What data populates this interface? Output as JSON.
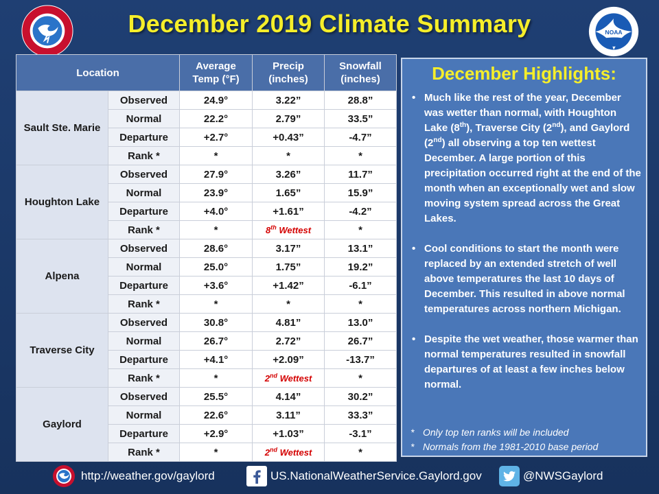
{
  "title": "December 2019 Climate Summary",
  "table": {
    "headers": {
      "location": "Location",
      "temp": [
        "Average",
        "Temp (°F)"
      ],
      "precip": [
        "Precip",
        "(inches)"
      ],
      "snow": [
        "Snowfall",
        "(inches)"
      ]
    },
    "locations": [
      {
        "name": "Sault Ste. Marie",
        "rows": [
          {
            "label": "Observed",
            "temp": "24.9°",
            "precip": "3.22”",
            "snow": "28.8”"
          },
          {
            "label": "Normal",
            "temp": "22.2°",
            "precip": "2.79”",
            "snow": "33.5”"
          },
          {
            "label": "Departure",
            "temp": "+2.7°",
            "precip": "+0.43”",
            "snow": "-4.7”"
          },
          {
            "label": "Rank *",
            "temp": "*",
            "precip": "*",
            "snow": "*"
          }
        ]
      },
      {
        "name": "Houghton Lake",
        "rows": [
          {
            "label": "Observed",
            "temp": "27.9°",
            "precip": "3.26”",
            "snow": "11.7”"
          },
          {
            "label": "Normal",
            "temp": "23.9°",
            "precip": "1.65”",
            "snow": "15.9”"
          },
          {
            "label": "Departure",
            "temp": "+4.0°",
            "precip": "+1.61”",
            "snow": "-4.2”"
          },
          {
            "label": "Rank *",
            "temp": "*",
            "precip_rank": "8",
            "precip_sup": "th",
            "precip_suffix": " Wettest",
            "snow": "*"
          }
        ]
      },
      {
        "name": "Alpena",
        "rows": [
          {
            "label": "Observed",
            "temp": "28.6°",
            "precip": "3.17”",
            "snow": "13.1”"
          },
          {
            "label": "Normal",
            "temp": "25.0°",
            "precip": "1.75”",
            "snow": "19.2”"
          },
          {
            "label": "Departure",
            "temp": "+3.6°",
            "precip": "+1.42”",
            "snow": "-6.1”"
          },
          {
            "label": "Rank *",
            "temp": "*",
            "precip": "*",
            "snow": "*"
          }
        ]
      },
      {
        "name": "Traverse City",
        "rows": [
          {
            "label": "Observed",
            "temp": "30.8°",
            "precip": "4.81”",
            "snow": "13.0”"
          },
          {
            "label": "Normal",
            "temp": "26.7°",
            "precip": "2.72”",
            "snow": "26.7”"
          },
          {
            "label": "Departure",
            "temp": "+4.1°",
            "precip": "+2.09”",
            "snow": "-13.7”"
          },
          {
            "label": "Rank *",
            "temp": "*",
            "precip_rank": "2",
            "precip_sup": "nd",
            "precip_suffix": " Wettest",
            "snow": "*"
          }
        ]
      },
      {
        "name": "Gaylord",
        "rows": [
          {
            "label": "Observed",
            "temp": "25.5°",
            "precip": "4.14”",
            "snow": "30.2”"
          },
          {
            "label": "Normal",
            "temp": "22.6°",
            "precip": "3.11”",
            "snow": "33.3”"
          },
          {
            "label": "Departure",
            "temp": "+2.9°",
            "precip": "+1.03”",
            "snow": "-3.1”"
          },
          {
            "label": "Rank *",
            "temp": "*",
            "precip_rank": "2",
            "precip_sup": "nd",
            "precip_suffix": " Wettest",
            "snow": "*"
          }
        ]
      }
    ]
  },
  "highlights": {
    "title": "December Highlights:",
    "bullet1": {
      "a": "Much like the rest of the year, December was wetter than normal, with Houghton Lake (8",
      "a_sup": "th",
      "b": "), Traverse City (2",
      "b_sup": "nd",
      "c": "), and Gaylord (2",
      "c_sup": "nd",
      "d": ") all observing a top ten wettest December. A large portion of this precipitation occurred right at the end of the month when an exceptionally wet and slow moving system spread across the Great Lakes."
    },
    "bullet2": "Cool conditions to start the month were replaced by an extended stretch of well above temperatures the last 10 days of December. This resulted in above normal temperatures across northern Michigan.",
    "bullet3": "Despite the wet weather, those warmer than normal temperatures resulted in snowfall departures of at least a few inches below normal.",
    "notes": [
      "Only top ten ranks will be included",
      "Normals from the 1981-2010 base period"
    ]
  },
  "footer": {
    "website": "http://weather.gov/gaylord",
    "facebook": "US.NationalWeatherService.Gaylord.gov",
    "twitter": "@NWSGaylord"
  },
  "logos": {
    "nws": "NATIONAL WEATHER SERVICE",
    "noaa": "NOAA"
  },
  "colors": {
    "background": "#1f3f73",
    "title": "#f5ee2a",
    "table_header": "#4a6ea8",
    "panel": "#4a77b8",
    "rank_highlight": "#d40000"
  }
}
